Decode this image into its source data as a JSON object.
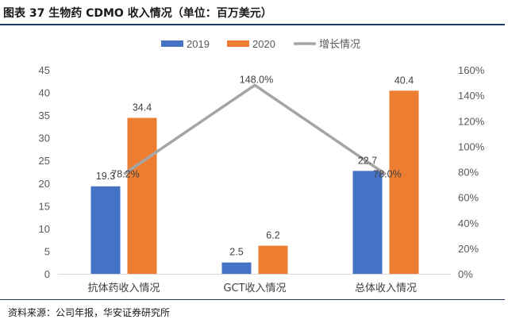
{
  "header": {
    "title": "图表 37 生物药 CDMO 收入情况（单位：百万美元）"
  },
  "footer": {
    "source": "资料来源：公司年报，华安证券研究所"
  },
  "colors": {
    "s2019": "#4472c4",
    "s2020": "#ed7d31",
    "growth": "#a5a5a5",
    "rule": "#1f3864"
  },
  "chart_data": {
    "type": "bar",
    "categories": [
      "抗体药收入情况",
      "GCT收入情况",
      "总体收入情况"
    ],
    "series": [
      {
        "name": "2019",
        "kind": "bar",
        "axis": "left",
        "values": [
          19.3,
          2.5,
          22.7
        ],
        "labels": [
          "19.3",
          "2.5",
          "22.7"
        ]
      },
      {
        "name": "2020",
        "kind": "bar",
        "axis": "left",
        "values": [
          34.4,
          6.2,
          40.4
        ],
        "labels": [
          "34.4",
          "6.2",
          "40.4"
        ]
      },
      {
        "name": "增长情况",
        "kind": "line",
        "axis": "right",
        "values": [
          78.2,
          148.0,
          78.0
        ],
        "labels": [
          "78.2%",
          "148.0%",
          "78.0%"
        ]
      }
    ],
    "ylim": [
      0,
      45
    ],
    "y_ticks": [
      "0",
      "5",
      "10",
      "15",
      "20",
      "25",
      "30",
      "35",
      "40",
      "45"
    ],
    "y2lim": [
      0,
      160
    ],
    "y2_ticks": [
      "0%",
      "20%",
      "40%",
      "60%",
      "80%",
      "100%",
      "120%",
      "140%",
      "160%"
    ],
    "grid": false,
    "legend_position": "top"
  }
}
